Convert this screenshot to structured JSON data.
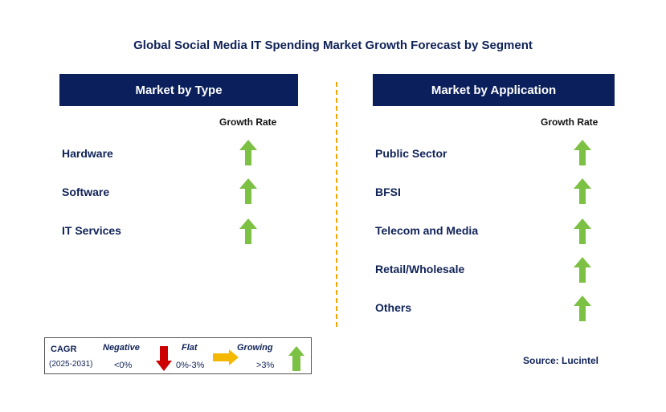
{
  "title": "Global Social Media IT Spending Market Growth Forecast by Segment",
  "colors": {
    "header_bg": "#0a1f5c",
    "text": "#0f2257",
    "up_arrow": "#7cc143",
    "down_arrow": "#cc0000",
    "flat_arrow": "#f5b800",
    "divider": "#f0a500"
  },
  "left_panel": {
    "header": "Market by Type",
    "column_header": "Growth Rate",
    "rows": [
      {
        "label": "Hardware",
        "trend": "growing"
      },
      {
        "label": "Software",
        "trend": "growing"
      },
      {
        "label": "IT Services",
        "trend": "growing"
      }
    ]
  },
  "right_panel": {
    "header": "Market by Application",
    "column_header": "Growth Rate",
    "rows": [
      {
        "label": "Public Sector",
        "trend": "growing"
      },
      {
        "label": "BFSI",
        "trend": "growing"
      },
      {
        "label": "Telecom and Media",
        "trend": "growing"
      },
      {
        "label": "Retail/Wholesale",
        "trend": "growing"
      },
      {
        "label": "Others",
        "trend": "growing"
      }
    ]
  },
  "legend": {
    "cagr_label": "CAGR",
    "period": "(2025-2031)",
    "negative": {
      "label": "Negative",
      "value": "<0%",
      "icon": "down-arrow-icon"
    },
    "flat": {
      "label": "Flat",
      "value": "0%-3%",
      "icon": "right-arrow-icon"
    },
    "growing": {
      "label": "Growing",
      "value": ">3%",
      "icon": "up-arrow-icon"
    }
  },
  "source": "Source: Lucintel"
}
